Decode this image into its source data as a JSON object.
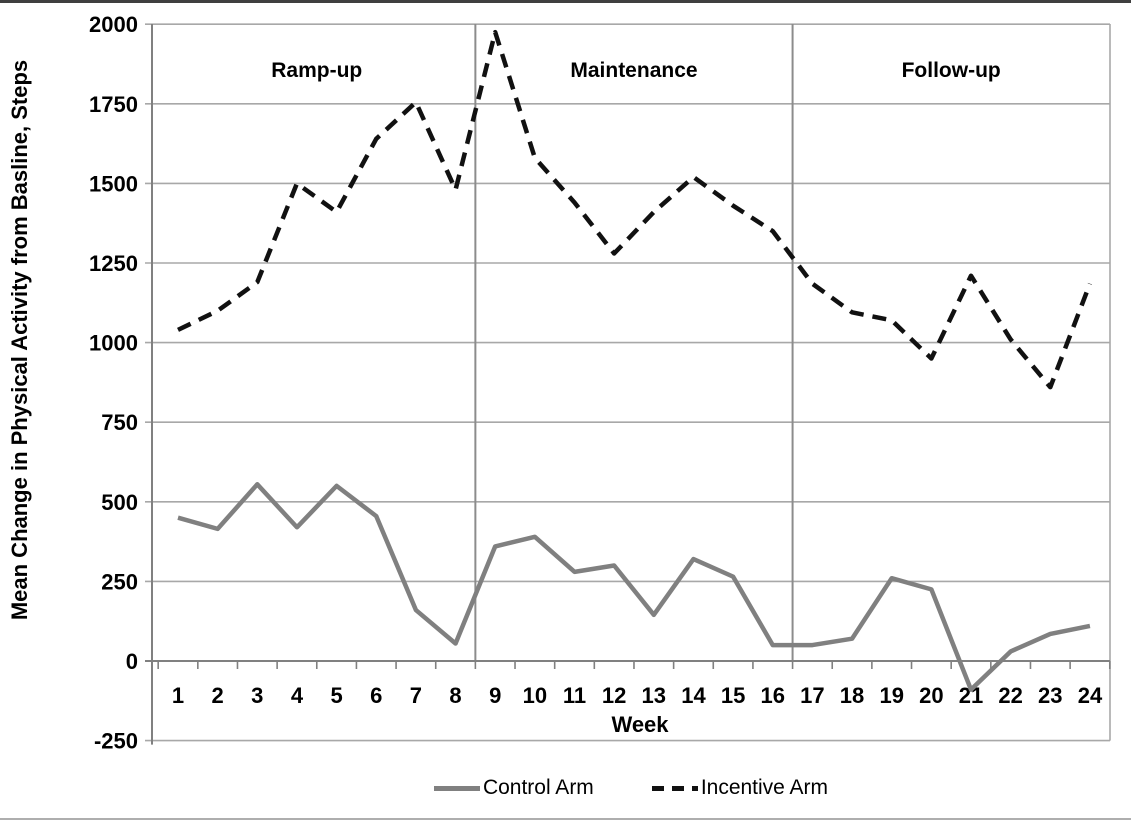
{
  "chart_data": {
    "type": "line",
    "title": "",
    "xlabel": "Week",
    "ylabel": "Mean Change in Physical Activity from Basline, Steps",
    "x": [
      1,
      2,
      3,
      4,
      5,
      6,
      7,
      8,
      9,
      10,
      11,
      12,
      13,
      14,
      15,
      16,
      17,
      18,
      19,
      20,
      21,
      22,
      23,
      24
    ],
    "ylim": [
      -250,
      2000
    ],
    "ytick_interval": 250,
    "yticks": [
      2000,
      1750,
      1500,
      1250,
      1000,
      750,
      500,
      250,
      0,
      -250
    ],
    "grid": "horizontal-only",
    "legend_position": "bottom-center",
    "series": [
      {
        "name": "Control Arm",
        "style": "solid",
        "color": "#808080",
        "values": [
          450,
          415,
          555,
          420,
          550,
          455,
          160,
          55,
          360,
          390,
          280,
          300,
          145,
          320,
          265,
          50,
          50,
          70,
          260,
          225,
          -90,
          30,
          85,
          110
        ]
      },
      {
        "name": "Incentive Arm",
        "style": "dashed",
        "color": "#111111",
        "values": [
          1040,
          1100,
          1190,
          1500,
          1410,
          1640,
          1755,
          1480,
          1975,
          1580,
          1440,
          1280,
          1410,
          1520,
          1430,
          1350,
          1185,
          1095,
          1070,
          950,
          1210,
          1010,
          860,
          1185
        ]
      }
    ],
    "annotations": {
      "phases": [
        {
          "label": "Ramp-up",
          "week_start": 1,
          "week_end": 8
        },
        {
          "label": "Maintenance",
          "week_start": 9,
          "week_end": 16
        },
        {
          "label": "Follow-up",
          "week_start": 17,
          "week_end": 24
        }
      ]
    }
  },
  "colors": {
    "control_line": "#808080",
    "incentive_line": "#111111",
    "gridline": "#a8a8a8",
    "axis": "#808080",
    "phase_divider": "#8c8c8c",
    "text": "#000000"
  }
}
